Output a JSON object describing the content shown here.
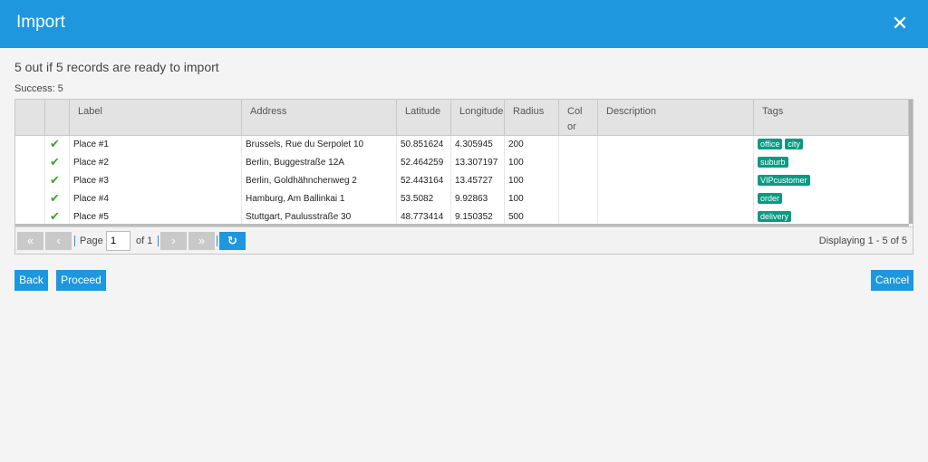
{
  "window": {
    "title": "Import",
    "close_glyph": "✕"
  },
  "summary": "5 out if 5 records are ready to import",
  "success": "Success: 5",
  "grid": {
    "columns": [
      "",
      "",
      "Label",
      "Address",
      "Latitude",
      "Longitude",
      "Radius",
      "Color",
      "Description",
      "Tags"
    ],
    "rows": [
      {
        "label": "Place #1",
        "address": "Brussels, Rue du Serpolet 10",
        "latitude": "50.851624",
        "longitude": "4.305945",
        "radius": "200",
        "color": "",
        "description": "",
        "tags": [
          "office",
          "city"
        ]
      },
      {
        "label": "Place #2",
        "address": "Berlin, Buggestraße 12A",
        "latitude": "52.464259",
        "longitude": "13.307197",
        "radius": "100",
        "color": "",
        "description": "",
        "tags": [
          "suburb"
        ]
      },
      {
        "label": "Place #3",
        "address": "Berlin, Goldhähnchenweg 2",
        "latitude": "52.443164",
        "longitude": "13.45727",
        "radius": "100",
        "color": "",
        "description": "",
        "tags": [
          "VIPcustomer"
        ]
      },
      {
        "label": "Place #4",
        "address": "Hamburg, Am Ballinkai 1",
        "latitude": "53.5082",
        "longitude": "9.92863",
        "radius": "100",
        "color": "",
        "description": "",
        "tags": [
          "order"
        ]
      },
      {
        "label": "Place #5",
        "address": "Stuttgart, Paulusstraße 30",
        "latitude": "48.773414",
        "longitude": "9.150352",
        "radius": "500",
        "color": "",
        "description": "",
        "tags": [
          "delivery"
        ]
      }
    ],
    "status_icon": "check-icon",
    "check_color": "#3aa52a",
    "tag_color": "#0a9a82"
  },
  "pager": {
    "first": "«",
    "prev": "‹",
    "page_label": "Page",
    "page_value": "1",
    "of_label": "of 1",
    "next": "›",
    "last": "»",
    "refresh": "↻",
    "displaying": "Displaying 1 - 5 of 5"
  },
  "buttons": {
    "back": "Back",
    "proceed": "Proceed",
    "cancel": "Cancel"
  },
  "colors": {
    "accent": "#1e97de"
  }
}
